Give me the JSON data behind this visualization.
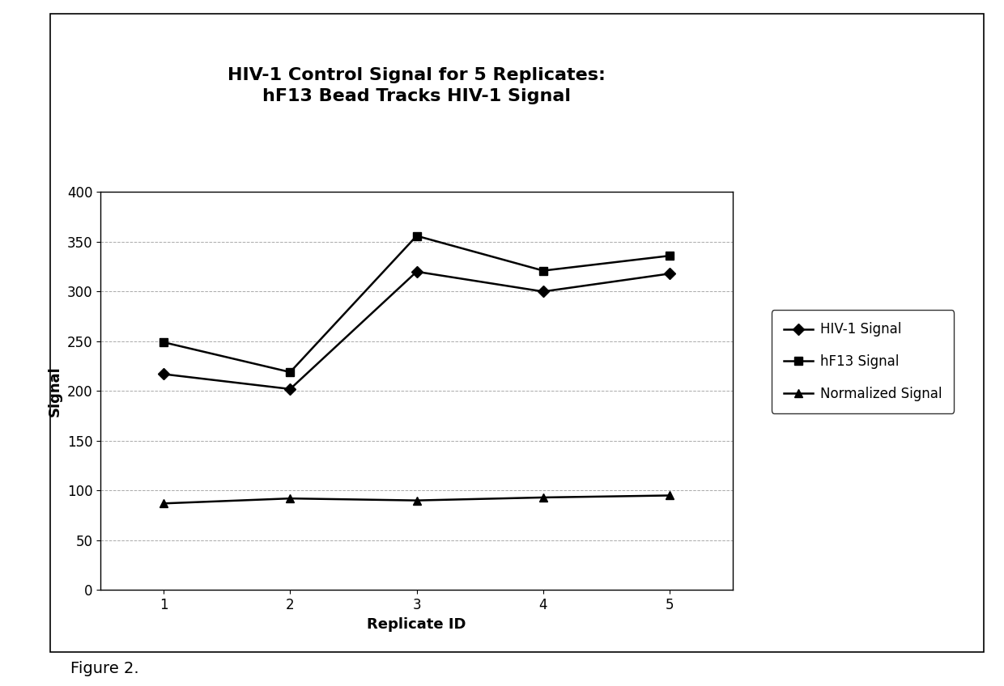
{
  "title_line1": "HIV-1 Control Signal for 5 Replicates:",
  "title_line2": "hF13 Bead Tracks HIV-1 Signal",
  "xlabel": "Replicate ID",
  "ylabel": "Signal",
  "figure_caption": "Figure 2.",
  "x": [
    1,
    2,
    3,
    4,
    5
  ],
  "hiv1_signal": [
    217,
    202,
    320,
    300,
    318
  ],
  "hf13_signal": [
    249,
    219,
    356,
    321,
    336
  ],
  "normalized_signal": [
    87,
    92,
    90,
    93,
    95
  ],
  "ylim": [
    0,
    400
  ],
  "yticks": [
    0,
    50,
    100,
    150,
    200,
    250,
    300,
    350,
    400
  ],
  "xticks": [
    1,
    2,
    3,
    4,
    5
  ],
  "legend_labels": [
    "HIV-1 Signal",
    "hF13 Signal",
    "Normalized Signal"
  ],
  "line_color": "#000000",
  "background_color": "#ffffff",
  "plot_bg_color": "#ffffff",
  "title_fontsize": 16,
  "label_fontsize": 13,
  "tick_fontsize": 12,
  "legend_fontsize": 12,
  "caption_fontsize": 14
}
